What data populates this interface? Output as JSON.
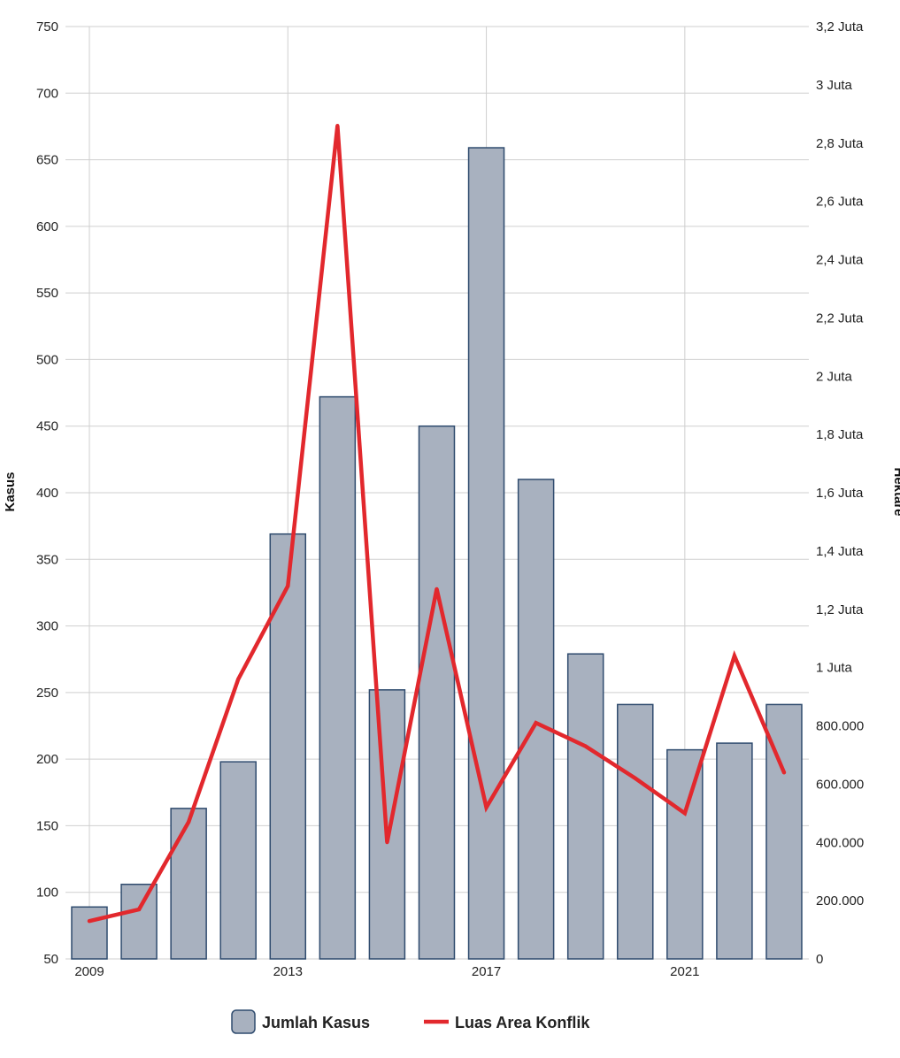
{
  "chart_data": {
    "type": "bar",
    "x": [
      2009,
      2010,
      2011,
      2012,
      2013,
      2014,
      2015,
      2016,
      2017,
      2018,
      2019,
      2020,
      2021,
      2022,
      2023
    ],
    "x_tick_labels": [
      "2009",
      "2013",
      "2017",
      "2021"
    ],
    "series": [
      {
        "name": "Jumlah Kasus",
        "type": "bar",
        "axis": "left",
        "color": "#a8b1bf",
        "edge_color": "#2f4b6e",
        "values": [
          89,
          106,
          163,
          198,
          369,
          472,
          252,
          450,
          659,
          410,
          279,
          241,
          207,
          212,
          241
        ]
      },
      {
        "name": "Luas Area Konflik",
        "type": "line",
        "axis": "right",
        "color": "#e2282d",
        "values": [
          130000,
          170000,
          470000,
          960000,
          1280000,
          2860000,
          400000,
          1270000,
          520000,
          810000,
          730000,
          620000,
          500000,
          1040000,
          640000
        ]
      }
    ],
    "y_left": {
      "label": "Kasus",
      "range": [
        50,
        750
      ],
      "ticks": [
        {
          "value": 50,
          "label": "50"
        },
        {
          "value": 100,
          "label": "100"
        },
        {
          "value": 150,
          "label": "150"
        },
        {
          "value": 200,
          "label": "200"
        },
        {
          "value": 250,
          "label": "250"
        },
        {
          "value": 300,
          "label": "300"
        },
        {
          "value": 350,
          "label": "350"
        },
        {
          "value": 400,
          "label": "400"
        },
        {
          "value": 450,
          "label": "450"
        },
        {
          "value": 500,
          "label": "500"
        },
        {
          "value": 550,
          "label": "550"
        },
        {
          "value": 600,
          "label": "600"
        },
        {
          "value": 650,
          "label": "650"
        },
        {
          "value": 700,
          "label": "700"
        },
        {
          "value": 750,
          "label": "750"
        }
      ]
    },
    "y_right": {
      "label": "Hektare",
      "range": [
        0,
        3200000
      ],
      "ticks": [
        {
          "value": 0,
          "label": "0"
        },
        {
          "value": 200000,
          "label": "200.000"
        },
        {
          "value": 400000,
          "label": "400.000"
        },
        {
          "value": 600000,
          "label": "600.000"
        },
        {
          "value": 800000,
          "label": "800.000"
        },
        {
          "value": 1000000,
          "label": "1 Juta"
        },
        {
          "value": 1200000,
          "label": "1,2 Juta"
        },
        {
          "value": 1400000,
          "label": "1,4 Juta"
        },
        {
          "value": 1600000,
          "label": "1,6 Juta"
        },
        {
          "value": 1800000,
          "label": "1,8 Juta"
        },
        {
          "value": 2000000,
          "label": "2 Juta"
        },
        {
          "value": 2200000,
          "label": "2,2 Juta"
        },
        {
          "value": 2400000,
          "label": "2,4 Juta"
        },
        {
          "value": 2600000,
          "label": "2,6 Juta"
        },
        {
          "value": 2800000,
          "label": "2,8 Juta"
        },
        {
          "value": 3000000,
          "label": "3 Juta"
        },
        {
          "value": 3200000,
          "label": "3,2 Juta"
        }
      ]
    },
    "grid": true,
    "legend": {
      "position": "bottom-center",
      "items": [
        "Jumlah Kasus",
        "Luas Area Konflik"
      ]
    }
  }
}
